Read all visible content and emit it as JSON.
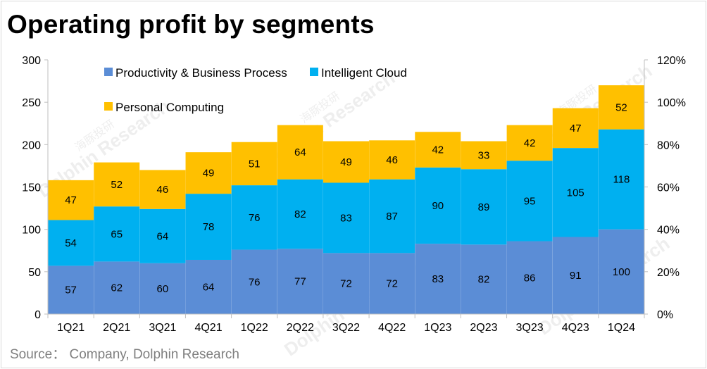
{
  "title": "Operating profit by segments",
  "source": "Source： Company, Dolphin Research",
  "watermark": [
    "海豚投研",
    "Dolphin Research"
  ],
  "colors": {
    "pbp": "#5b8dd6",
    "ic": "#00b0f0",
    "pc": "#ffc000",
    "axis": "#bfbfbf",
    "text": "#000000"
  },
  "chart_data": {
    "type": "bar",
    "stacked": true,
    "title": "Operating profit by segments",
    "categories": [
      "1Q21",
      "2Q21",
      "3Q21",
      "4Q21",
      "1Q22",
      "2Q22",
      "3Q22",
      "4Q22",
      "1Q23",
      "2Q23",
      "3Q23",
      "4Q23",
      "1Q24"
    ],
    "series": [
      {
        "name": "Productivity & Business Process",
        "color": "#5b8dd6",
        "values": [
          57,
          62,
          60,
          64,
          76,
          77,
          72,
          72,
          83,
          82,
          86,
          91,
          100
        ]
      },
      {
        "name": "Intelligent Cloud",
        "color": "#00b0f0",
        "values": [
          54,
          65,
          64,
          78,
          76,
          82,
          83,
          87,
          90,
          89,
          95,
          105,
          118
        ]
      },
      {
        "name": "Personal Computing",
        "color": "#ffc000",
        "values": [
          47,
          52,
          46,
          49,
          51,
          64,
          49,
          46,
          42,
          33,
          42,
          47,
          52
        ]
      }
    ],
    "ylim": [
      0,
      300
    ],
    "yticks": [
      "0",
      "50",
      "100",
      "150",
      "200",
      "250",
      "300"
    ],
    "y2lim": [
      0,
      1.2
    ],
    "y2ticks": [
      "0%",
      "20%",
      "40%",
      "60%",
      "80%",
      "100%",
      "120%"
    ],
    "legend": "top-left",
    "grid": false
  }
}
